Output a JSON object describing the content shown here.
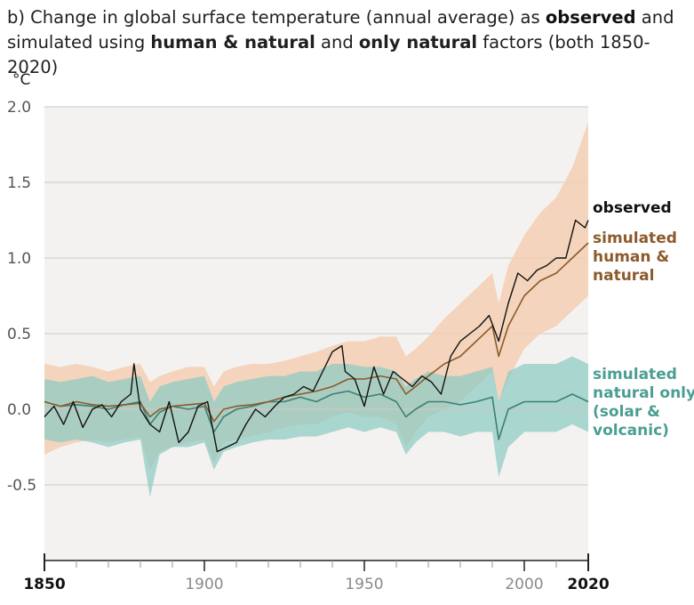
{
  "title": {
    "prefix": "b) Change in global surface temperature (annual average) as ",
    "observed": "observed",
    "mid1": " and",
    "line2_start": "simulated using ",
    "human": "human & natural",
    "mid2": " and ",
    "natural": "only natural",
    "suffix": " factors (both 1850-2020)"
  },
  "colors": {
    "observed": "#111111",
    "human": "#8c5a2b",
    "human_band": "#f3cfb3",
    "natural": "#3d7f73",
    "natural_band": "#8ecac3",
    "natural_label": "#4a9e92",
    "plot_bg": "#f4f2f0",
    "grid": "#d4d2d0"
  },
  "chart_data": {
    "type": "line",
    "ylabel": "°C",
    "ylim": [
      -1.0,
      2.0
    ],
    "xlim": [
      1850,
      2020
    ],
    "yticks": [
      {
        "value": 2.0,
        "label": "2.0"
      },
      {
        "value": 1.5,
        "label": "1.5"
      },
      {
        "value": 1.0,
        "label": "1.0"
      },
      {
        "value": 0.5,
        "label": "0.5"
      },
      {
        "value": 0.0,
        "label": "0.0"
      },
      {
        "value": -0.5,
        "label": "-0.5"
      }
    ],
    "xticks": [
      {
        "value": 1850,
        "label": "1850",
        "bold": true
      },
      {
        "value": 1900,
        "label": "1900",
        "bold": false
      },
      {
        "value": 1950,
        "label": "1950",
        "bold": false
      },
      {
        "value": 2000,
        "label": "2000",
        "bold": false
      },
      {
        "value": 2020,
        "label": "2020",
        "bold": true
      }
    ],
    "series": [
      {
        "name": "observed",
        "label_lines": [
          "observed"
        ],
        "x": [
          1850,
          1853,
          1856,
          1859,
          1862,
          1865,
          1868,
          1871,
          1874,
          1877,
          1878,
          1880,
          1883,
          1886,
          1889,
          1892,
          1895,
          1898,
          1901,
          1904,
          1907,
          1910,
          1913,
          1916,
          1919,
          1922,
          1925,
          1928,
          1931,
          1934,
          1937,
          1940,
          1943,
          1944,
          1947,
          1950,
          1953,
          1956,
          1959,
          1962,
          1965,
          1968,
          1971,
          1974,
          1977,
          1980,
          1983,
          1986,
          1989,
          1992,
          1995,
          1998,
          2001,
          2004,
          2007,
          2010,
          2013,
          2016,
          2019,
          2020
        ],
        "y": [
          -0.05,
          0.02,
          -0.1,
          0.05,
          -0.12,
          0.0,
          0.03,
          -0.05,
          0.05,
          0.1,
          0.3,
          0.0,
          -0.1,
          -0.15,
          0.05,
          -0.22,
          -0.15,
          0.02,
          0.05,
          -0.28,
          -0.25,
          -0.22,
          -0.1,
          0.0,
          -0.05,
          0.02,
          0.08,
          0.1,
          0.15,
          0.12,
          0.25,
          0.38,
          0.42,
          0.25,
          0.2,
          0.02,
          0.28,
          0.1,
          0.25,
          0.2,
          0.15,
          0.22,
          0.18,
          0.1,
          0.35,
          0.45,
          0.5,
          0.55,
          0.62,
          0.45,
          0.7,
          0.9,
          0.85,
          0.92,
          0.95,
          1.0,
          1.0,
          1.25,
          1.2,
          1.25
        ]
      },
      {
        "name": "simulated human & natural",
        "label_lines": [
          "simulated",
          "human &",
          "natural"
        ],
        "x": [
          1850,
          1855,
          1860,
          1865,
          1870,
          1875,
          1880,
          1883,
          1886,
          1890,
          1895,
          1900,
          1903,
          1906,
          1910,
          1915,
          1920,
          1925,
          1930,
          1935,
          1940,
          1945,
          1950,
          1955,
          1960,
          1963,
          1966,
          1970,
          1975,
          1980,
          1985,
          1990,
          1992,
          1995,
          2000,
          2005,
          2010,
          2015,
          2020
        ],
        "y": [
          0.05,
          0.02,
          0.05,
          0.03,
          0.02,
          0.03,
          0.04,
          -0.05,
          0.0,
          0.02,
          0.03,
          0.04,
          -0.08,
          0.0,
          0.02,
          0.03,
          0.05,
          0.08,
          0.1,
          0.12,
          0.15,
          0.2,
          0.2,
          0.22,
          0.2,
          0.1,
          0.15,
          0.22,
          0.3,
          0.35,
          0.45,
          0.55,
          0.35,
          0.55,
          0.75,
          0.85,
          0.9,
          1.0,
          1.1
        ]
      },
      {
        "name": "simulated natural only (solar & volcanic)",
        "label_lines": [
          "simulated",
          "natural only",
          "(solar &",
          "volcanic)"
        ],
        "x": [
          1850,
          1855,
          1860,
          1865,
          1870,
          1875,
          1880,
          1883,
          1886,
          1890,
          1895,
          1900,
          1903,
          1906,
          1910,
          1915,
          1920,
          1925,
          1930,
          1935,
          1940,
          1945,
          1950,
          1955,
          1960,
          1963,
          1966,
          1970,
          1975,
          1980,
          1985,
          1990,
          1992,
          1995,
          2000,
          2005,
          2010,
          2015,
          2020
        ],
        "y": [
          0.05,
          0.02,
          0.03,
          0.02,
          0.0,
          0.03,
          0.05,
          -0.1,
          -0.02,
          0.02,
          0.0,
          0.02,
          -0.15,
          -0.05,
          0.0,
          0.02,
          0.05,
          0.05,
          0.08,
          0.05,
          0.1,
          0.12,
          0.08,
          0.1,
          0.05,
          -0.05,
          0.0,
          0.05,
          0.05,
          0.03,
          0.05,
          0.08,
          -0.2,
          0.0,
          0.05,
          0.05,
          0.05,
          0.1,
          0.05
        ]
      }
    ],
    "bands": [
      {
        "name": "simulated human & natural range",
        "x": [
          1850,
          1855,
          1860,
          1865,
          1870,
          1875,
          1880,
          1883,
          1886,
          1890,
          1895,
          1900,
          1903,
          1906,
          1910,
          1915,
          1920,
          1925,
          1930,
          1935,
          1940,
          1945,
          1950,
          1955,
          1960,
          1963,
          1966,
          1970,
          1975,
          1980,
          1985,
          1990,
          1992,
          1995,
          2000,
          2005,
          2010,
          2015,
          2020
        ],
        "low": [
          -0.3,
          -0.25,
          -0.22,
          -0.2,
          -0.22,
          -0.2,
          -0.18,
          -0.4,
          -0.28,
          -0.25,
          -0.22,
          -0.2,
          -0.35,
          -0.22,
          -0.2,
          -0.18,
          -0.15,
          -0.12,
          -0.1,
          -0.1,
          -0.05,
          -0.02,
          -0.05,
          -0.05,
          -0.1,
          -0.25,
          -0.15,
          -0.05,
          0.0,
          0.05,
          0.15,
          0.25,
          0.05,
          0.2,
          0.4,
          0.5,
          0.55,
          0.65,
          0.75
        ],
        "high": [
          0.3,
          0.28,
          0.3,
          0.28,
          0.25,
          0.28,
          0.3,
          0.18,
          0.22,
          0.25,
          0.28,
          0.28,
          0.15,
          0.25,
          0.28,
          0.3,
          0.3,
          0.32,
          0.35,
          0.38,
          0.42,
          0.45,
          0.45,
          0.48,
          0.48,
          0.35,
          0.4,
          0.48,
          0.6,
          0.7,
          0.8,
          0.9,
          0.7,
          0.95,
          1.15,
          1.3,
          1.4,
          1.6,
          1.9
        ]
      },
      {
        "name": "simulated natural only range",
        "x": [
          1850,
          1855,
          1860,
          1865,
          1870,
          1875,
          1880,
          1883,
          1886,
          1890,
          1895,
          1900,
          1903,
          1906,
          1910,
          1915,
          1920,
          1925,
          1930,
          1935,
          1940,
          1945,
          1950,
          1955,
          1960,
          1963,
          1966,
          1970,
          1975,
          1980,
          1985,
          1990,
          1992,
          1995,
          2000,
          2005,
          2010,
          2015,
          2020
        ],
        "low": [
          -0.2,
          -0.22,
          -0.2,
          -0.22,
          -0.25,
          -0.22,
          -0.2,
          -0.58,
          -0.3,
          -0.25,
          -0.25,
          -0.22,
          -0.4,
          -0.28,
          -0.25,
          -0.22,
          -0.2,
          -0.2,
          -0.18,
          -0.18,
          -0.15,
          -0.12,
          -0.15,
          -0.12,
          -0.15,
          -0.3,
          -0.22,
          -0.15,
          -0.15,
          -0.18,
          -0.15,
          -0.15,
          -0.45,
          -0.25,
          -0.15,
          -0.15,
          -0.15,
          -0.1,
          -0.15
        ],
        "high": [
          0.2,
          0.18,
          0.2,
          0.22,
          0.18,
          0.2,
          0.22,
          0.05,
          0.15,
          0.18,
          0.2,
          0.22,
          0.05,
          0.15,
          0.18,
          0.2,
          0.22,
          0.22,
          0.25,
          0.25,
          0.3,
          0.3,
          0.28,
          0.28,
          0.25,
          0.15,
          0.2,
          0.25,
          0.22,
          0.22,
          0.25,
          0.28,
          0.05,
          0.25,
          0.3,
          0.3,
          0.3,
          0.35,
          0.3
        ]
      }
    ]
  }
}
